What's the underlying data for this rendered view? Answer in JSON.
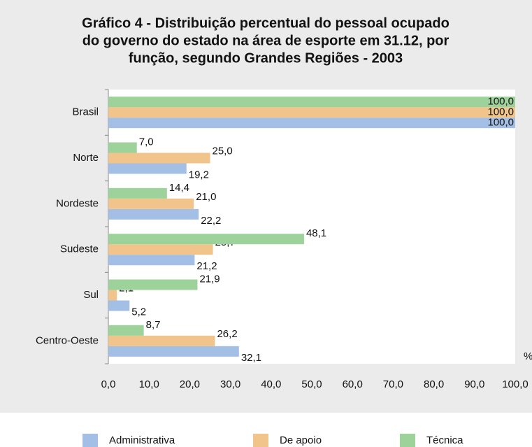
{
  "chart_data": {
    "type": "bar",
    "orientation": "horizontal",
    "title": "Gráfico 4 - Distribuição percentual do pessoal ocupado do governo do estado na área de esporte em 31.12, por função, segundo Grandes Regiões - 2003",
    "title_lines": [
      "Gráfico 4 - Distribuição percentual do pessoal ocupado",
      "do governo do estado na área de esporte em 31.12, por",
      "função, segundo Grandes Regiões - 2003"
    ],
    "x_label": "%",
    "categories": [
      "Brasil",
      "Norte",
      "Nordeste",
      "Sudeste",
      "Sul",
      "Centro-Oeste"
    ],
    "series": [
      {
        "name": "Administrativa",
        "color": "#a3bfe6",
        "values": [
          100,
          19.2,
          22.2,
          21.2,
          5.2,
          32.1
        ],
        "value_labels": [
          "100,0",
          "19,2",
          "22,2",
          "21,2",
          "5,2",
          "32,1"
        ]
      },
      {
        "name": "De apoio",
        "color": "#f0c48a",
        "values": [
          100,
          25,
          21,
          25.7,
          2.1,
          26.2
        ],
        "value_labels": [
          "100,0",
          "25,0",
          "21,0",
          "25,7",
          "2,1",
          "26,2"
        ]
      },
      {
        "name": "Técnica",
        "color": "#9ed29b",
        "values": [
          100,
          7,
          14.4,
          48.1,
          21.9,
          8.7
        ],
        "value_labels": [
          "100,0",
          "7,0",
          "14,4",
          "48,1",
          "21,9",
          "8,7"
        ]
      }
    ],
    "xlim": [
      0,
      100
    ],
    "xticks": [
      {
        "value": 0,
        "label": "0,0"
      },
      {
        "value": 10,
        "label": "10,0"
      },
      {
        "value": 20,
        "label": "20,0"
      },
      {
        "value": 30,
        "label": "30,0"
      },
      {
        "value": 40,
        "label": "40,0"
      },
      {
        "value": 50,
        "label": "50,0"
      },
      {
        "value": 60,
        "label": "60,0"
      },
      {
        "value": 70,
        "label": "70,0"
      },
      {
        "value": 80,
        "label": "80,0"
      },
      {
        "value": 90,
        "label": "90,0"
      },
      {
        "value": 100,
        "label": "100,0"
      }
    ],
    "legend": "bottom"
  }
}
